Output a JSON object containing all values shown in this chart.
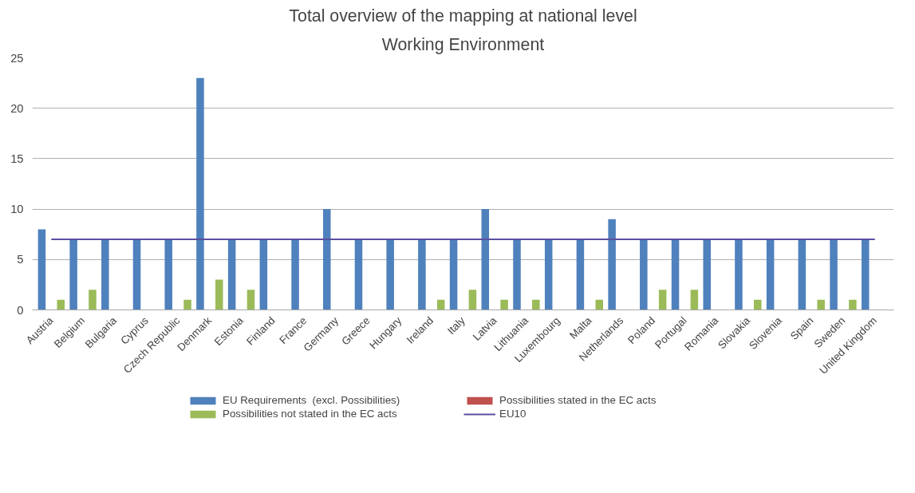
{
  "chart_data": {
    "type": "bar",
    "title": "Total overview of the mapping at national level",
    "subtitle": "Working Environment",
    "categories": [
      "Austria",
      "Belgium",
      "Bulgaria",
      "Cyprus",
      "Czech Republic",
      "Denmark",
      "Estonia",
      "Finland",
      "France",
      "Germany",
      "Greece",
      "Hungary",
      "Ireland",
      "Italy",
      "Latvia",
      "Lithuania",
      "Luxembourg",
      "Malta",
      "Netherlands",
      "Poland",
      "Portugal",
      "Romania",
      "Slovakia",
      "Slovenia",
      "Spain",
      "Sweden",
      "United Kingdom"
    ],
    "series": [
      {
        "name": "EU Requirements  (excl. Possibilities)",
        "color": "#4f81bd",
        "values": [
          8,
          7,
          7,
          7,
          7,
          23,
          7,
          7,
          7,
          10,
          7,
          7,
          7,
          7,
          10,
          7,
          7,
          7,
          9,
          7,
          7,
          7,
          7,
          7,
          7,
          7,
          7
        ]
      },
      {
        "name": "Possibilities stated in the EC acts",
        "color": "#c0504d",
        "values": [
          0,
          0,
          0,
          0,
          0,
          0,
          0,
          0,
          0,
          0,
          0,
          0,
          0,
          0,
          0,
          0,
          0,
          0,
          0,
          0,
          0,
          0,
          0,
          0,
          0,
          0,
          0
        ]
      },
      {
        "name": "Possibilities not stated in the EC acts",
        "color": "#9bbb59",
        "values": [
          1,
          2,
          0,
          0,
          1,
          3,
          2,
          0,
          0,
          0,
          0,
          0,
          1,
          2,
          1,
          1,
          0,
          1,
          0,
          2,
          2,
          0,
          1,
          0,
          1,
          1,
          0
        ]
      },
      {
        "name": "EU10",
        "color": "#5b4fa0",
        "type": "line",
        "values": [
          7,
          7,
          7,
          7,
          7,
          7,
          7,
          7,
          7,
          7,
          7,
          7,
          7,
          7,
          7,
          7,
          7,
          7,
          7,
          7,
          7,
          7,
          7,
          7,
          7,
          7,
          7
        ]
      }
    ],
    "ylim": [
      0,
      25
    ],
    "yticks": [
      0,
      5,
      10,
      15,
      20,
      25
    ],
    "grid": "y",
    "legend": "bottom"
  }
}
